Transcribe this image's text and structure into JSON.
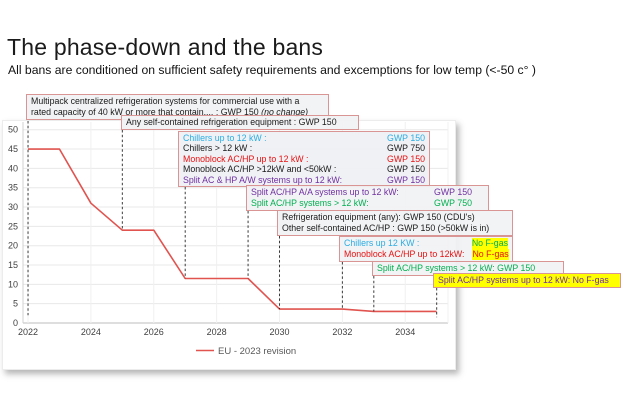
{
  "slide": {
    "title": "The phase-down and the bans",
    "subtitle": "All bans are conditioned on sufficient safety requirements and excemptions for low temp (<-50 c° )"
  },
  "colors": {
    "line_red": "#e0534f",
    "box_border_salmon": "#d99594",
    "cyan": "#2bade3",
    "red": "#e81111",
    "purple": "#7030a0",
    "green": "#00b050",
    "black": "#1a1a1a",
    "highlight_yellow": "#ffff00"
  },
  "chart_data": {
    "type": "line",
    "title": "",
    "xlabel": "",
    "ylabel": "",
    "xlim": [
      2021.84,
      2035.36
    ],
    "ylim": [
      0,
      52
    ],
    "x_ticks": [
      "2022",
      "2024",
      "2026",
      "2028",
      "2030",
      "2032",
      "2034"
    ],
    "x_tick_years": [
      2022,
      2024,
      2026,
      2028,
      2030,
      2032,
      2034
    ],
    "y_ticks": [
      0,
      5,
      10,
      15,
      20,
      25,
      30,
      35,
      40,
      45,
      50
    ],
    "grid": true,
    "legend_position": "bottom-center",
    "series": [
      {
        "name": "EU - 2023 revision",
        "color": "#e0534f",
        "points": [
          [
            2022,
            45
          ],
          [
            2023,
            45
          ],
          [
            2024,
            31
          ],
          [
            2025,
            24
          ],
          [
            2026,
            24
          ],
          [
            2027,
            11.5
          ],
          [
            2029,
            11.5
          ],
          [
            2030,
            3.6
          ],
          [
            2032,
            3.6
          ],
          [
            2033,
            3
          ],
          [
            2035,
            3
          ]
        ]
      }
    ]
  },
  "annotations": {
    "multipack": {
      "anchor_year": 2022,
      "leader_to": 2,
      "line1": "Multipack centralized refrigeration systems for commercial use with a",
      "line2": "rated capacity of 40 kW or more that contain.... : GWP 150 ",
      "line2_note": "(no change)"
    },
    "self_contained": {
      "anchor_year": 2025,
      "leader_to": 24,
      "text": "Any self-contained refrigeration equipment : GWP 150"
    },
    "chillers_gwp": {
      "anchor_year": 2027,
      "leader_to": 11.5,
      "rows": [
        {
          "label": "Chillers up to 12 kW :",
          "value": "GWP 150",
          "color": "#2bade3"
        },
        {
          "label": "Chillers > 12 kW :",
          "value": "GWP 750",
          "color": "#1a1a1a"
        },
        {
          "label": "Monoblock AC/HP up to 12 kW :",
          "value": "GWP 150",
          "color": "#e81111"
        },
        {
          "label": "Monoblock AC/HP >12kW and <50kW :",
          "value": "GWP 150",
          "color": "#1a1a1a"
        },
        {
          "label": "Split AC & HP A/W systems up to 12 kW:",
          "value": "GWP 150",
          "color": "#7030a0"
        }
      ]
    },
    "split_aa": {
      "anchor_year": 2029,
      "leader_to": 11.5,
      "rows": [
        {
          "label": "Split AC/HP A/A systems up to 12 kW:",
          "value": "GWP 150",
          "color": "#7030a0"
        },
        {
          "label": "Split AC/HP systems > 12 kW:",
          "value": "GWP 750",
          "color": "#00b050"
        }
      ]
    },
    "refrigeration": {
      "anchor_year": 2030,
      "leader_to": 3.6,
      "rows": [
        {
          "text": "Refrigeration equipment (any): GWP 150 (CDU's)"
        },
        {
          "text": "Other self-contained AC/HP :    GWP 150 (>50kW is in)"
        }
      ]
    },
    "no_fgas": {
      "anchor_year": 2032,
      "leader_to": 3.6,
      "rows": [
        {
          "label": "Chillers up 12 KW :",
          "label_color": "#2bade3",
          "value": "No F-gas",
          "value_color": "#00b050",
          "value_bg": "#ffff00"
        },
        {
          "label": "Monoblock AC/HP up to 12kW:",
          "label_color": "#e81111",
          "value": "No F-gas",
          "value_color": "#e81111",
          "value_bg": "#ffff00"
        }
      ]
    },
    "split_gt12": {
      "anchor_year": 2033,
      "leader_to": 3,
      "text": "Split AC/HP systems > 12 kW: GWP 150",
      "color": "#00b050"
    },
    "split_upto12": {
      "anchor_year": 2035,
      "leader_to": 1.5,
      "text": "Split AC/HP systems up to 12 kW: No F-gas",
      "color": "#7030a0",
      "bg": "#ffff00"
    }
  }
}
